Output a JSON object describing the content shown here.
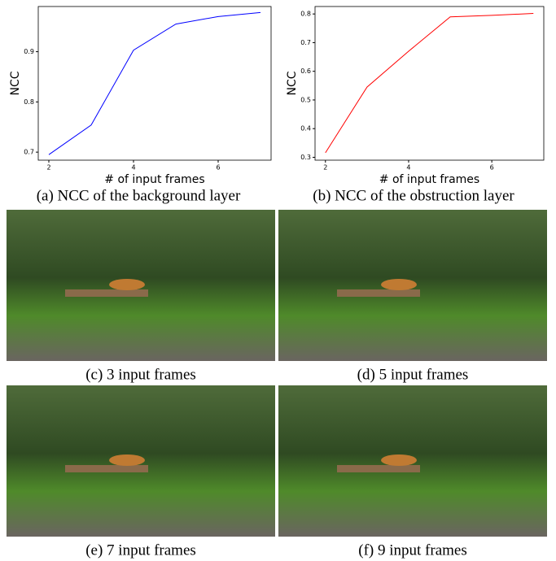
{
  "chart_data": [
    {
      "type": "line",
      "x": [
        2,
        3,
        4,
        5,
        6,
        7
      ],
      "values": [
        0.695,
        0.754,
        0.903,
        0.955,
        0.97,
        0.978
      ],
      "color": "#0000ff",
      "xlabel": "# of input frames",
      "ylabel": "NCC",
      "xlim": [
        1.75,
        7.25
      ],
      "xticks": [
        2,
        4,
        6
      ],
      "ylim": [
        0.684,
        0.99
      ],
      "yticks": [
        0.7,
        0.8,
        0.9
      ]
    },
    {
      "type": "line",
      "x": [
        2,
        3,
        4,
        5,
        6,
        7
      ],
      "values": [
        0.316,
        0.545,
        0.67,
        0.79,
        0.795,
        0.802
      ],
      "color": "#ff0000",
      "xlabel": "# of input frames",
      "ylabel": "NCC",
      "xlim": [
        1.75,
        7.25
      ],
      "xticks": [
        2,
        4,
        6
      ],
      "ylim": [
        0.29,
        0.826
      ],
      "yticks": [
        0.3,
        0.4,
        0.5,
        0.6,
        0.7,
        0.8
      ]
    }
  ],
  "chart_captions": [
    "(a) NCC of the background layer",
    "(b) NCC of the obstruction layer"
  ],
  "photo_captions": [
    "(c) 3 input frames",
    "(d) 5 input frames",
    "(e) 7 input frames",
    "(f) 9 input frames"
  ]
}
